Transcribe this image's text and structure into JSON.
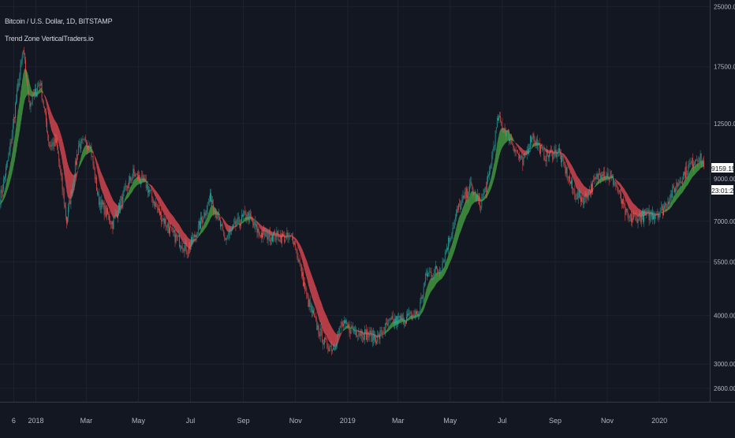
{
  "header": {
    "symbol_line": "Bitcoin / U.S. Dollar, 1D, BITSTAMP",
    "indicator_line": "Trend Zone VerticalTraders.io"
  },
  "price_badge": {
    "value": "9159.15",
    "countdown": "23:01:27"
  },
  "colors": {
    "background": "#131722",
    "grid": "#1e222d",
    "bull_zone": "#3d8b3d",
    "bear_zone": "#c0404a",
    "candle_up": "#26a69a",
    "candle_down": "#ef5350",
    "axis_text": "#b2b5be"
  },
  "chart_data": {
    "type": "line",
    "scale": "log",
    "price_ticks": [
      "25000.00",
      "17500.00",
      "12500.00",
      "9000.00",
      "7000.00",
      "5500.00",
      "4000.00",
      "3000.00",
      "2600.00"
    ],
    "price_tick_values": [
      25000,
      17500,
      12500,
      9000,
      7000,
      5500,
      4000,
      3000,
      2600
    ],
    "ylim": [
      2400,
      26000
    ],
    "time_ticks": [
      "6",
      "2018",
      "Mar",
      "May",
      "Jul",
      "Sep",
      "Nov",
      "2019",
      "Mar",
      "May",
      "Jul",
      "Sep",
      "Nov",
      "2020"
    ],
    "time_tick_dates": [
      "2017-12-06",
      "2018-01-01",
      "2018-03-01",
      "2018-05-01",
      "2018-07-01",
      "2018-09-01",
      "2018-11-01",
      "2019-01-01",
      "2019-03-01",
      "2019-05-01",
      "2019-07-01",
      "2019-09-01",
      "2019-11-01",
      "2020-01-01"
    ],
    "xlim": [
      "2017-11-20",
      "2020-02-29"
    ],
    "series": [
      {
        "dates": [
          "2017-11-20",
          "2017-12-01",
          "2017-12-10",
          "2017-12-17",
          "2017-12-25",
          "2018-01-06",
          "2018-01-17",
          "2018-01-25",
          "2018-02-06",
          "2018-02-20",
          "2018-03-05",
          "2018-03-15",
          "2018-04-01",
          "2018-04-12",
          "2018-04-25",
          "2018-05-10",
          "2018-05-25",
          "2018-06-10",
          "2018-06-28",
          "2018-07-10",
          "2018-07-25",
          "2018-08-10",
          "2018-08-25",
          "2018-09-05",
          "2018-09-20",
          "2018-10-10",
          "2018-10-30",
          "2018-11-15",
          "2018-11-25",
          "2018-12-05",
          "2018-12-15",
          "2018-12-25",
          "2019-01-05",
          "2019-01-20",
          "2019-02-05",
          "2019-02-20",
          "2019-03-10",
          "2019-03-25",
          "2019-04-03",
          "2019-04-20",
          "2019-05-10",
          "2019-05-25",
          "2019-06-05",
          "2019-06-15",
          "2019-06-26",
          "2019-07-10",
          "2019-07-25",
          "2019-08-05",
          "2019-08-20",
          "2019-09-05",
          "2019-09-24",
          "2019-10-05",
          "2019-10-26",
          "2019-11-10",
          "2019-11-25",
          "2019-12-10",
          "2019-12-25",
          "2020-01-05",
          "2020-01-20",
          "2020-02-05",
          "2020-02-15",
          "2020-02-22"
        ],
        "values": [
          8000,
          10500,
          15000,
          19200,
          14000,
          16000,
          11000,
          11200,
          7000,
          11000,
          11200,
          8000,
          6900,
          8000,
          9300,
          8700,
          7400,
          6500,
          5900,
          6700,
          8100,
          6300,
          6900,
          7300,
          6500,
          6400,
          6300,
          4400,
          3800,
          3400,
          3300,
          3800,
          3700,
          3600,
          3500,
          3850,
          3950,
          4050,
          5100,
          5300,
          7500,
          8600,
          7700,
          9000,
          12900,
          11500,
          9800,
          11700,
          10300,
          10600,
          8200,
          8000,
          9500,
          8800,
          7100,
          7200,
          7300,
          7500,
          8600,
          9700,
          10300,
          9900
        ]
      }
    ]
  }
}
